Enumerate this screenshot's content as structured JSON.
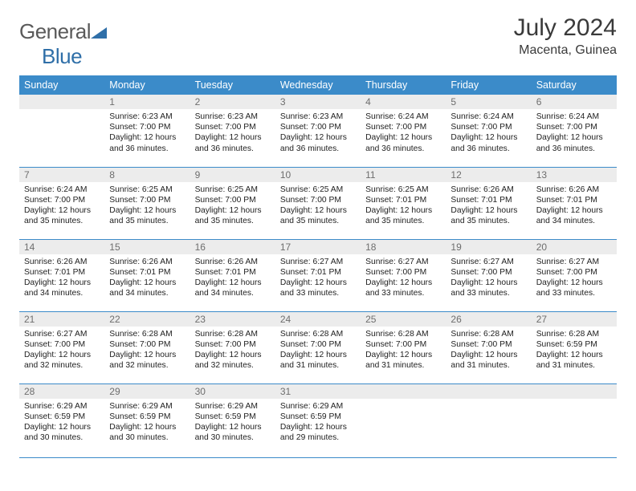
{
  "brand": {
    "name_a": "General",
    "name_b": "Blue"
  },
  "title": "July 2024",
  "subtitle": "Macenta, Guinea",
  "colors": {
    "header_bg": "#3b8bc9",
    "header_fg": "#ffffff",
    "daynum_bg": "#ececec",
    "daynum_fg": "#6e6e6e",
    "rule": "#3b8bc9",
    "text": "#222222",
    "brand_gray": "#5a5a5a",
    "brand_blue": "#2f6fa8"
  },
  "headers": [
    "Sunday",
    "Monday",
    "Tuesday",
    "Wednesday",
    "Thursday",
    "Friday",
    "Saturday"
  ],
  "weeks": [
    [
      {
        "n": "",
        "lines": []
      },
      {
        "n": "1",
        "lines": [
          "Sunrise: 6:23 AM",
          "Sunset: 7:00 PM",
          "Daylight: 12 hours",
          "and 36 minutes."
        ]
      },
      {
        "n": "2",
        "lines": [
          "Sunrise: 6:23 AM",
          "Sunset: 7:00 PM",
          "Daylight: 12 hours",
          "and 36 minutes."
        ]
      },
      {
        "n": "3",
        "lines": [
          "Sunrise: 6:23 AM",
          "Sunset: 7:00 PM",
          "Daylight: 12 hours",
          "and 36 minutes."
        ]
      },
      {
        "n": "4",
        "lines": [
          "Sunrise: 6:24 AM",
          "Sunset: 7:00 PM",
          "Daylight: 12 hours",
          "and 36 minutes."
        ]
      },
      {
        "n": "5",
        "lines": [
          "Sunrise: 6:24 AM",
          "Sunset: 7:00 PM",
          "Daylight: 12 hours",
          "and 36 minutes."
        ]
      },
      {
        "n": "6",
        "lines": [
          "Sunrise: 6:24 AM",
          "Sunset: 7:00 PM",
          "Daylight: 12 hours",
          "and 36 minutes."
        ]
      }
    ],
    [
      {
        "n": "7",
        "lines": [
          "Sunrise: 6:24 AM",
          "Sunset: 7:00 PM",
          "Daylight: 12 hours",
          "and 35 minutes."
        ]
      },
      {
        "n": "8",
        "lines": [
          "Sunrise: 6:25 AM",
          "Sunset: 7:00 PM",
          "Daylight: 12 hours",
          "and 35 minutes."
        ]
      },
      {
        "n": "9",
        "lines": [
          "Sunrise: 6:25 AM",
          "Sunset: 7:00 PM",
          "Daylight: 12 hours",
          "and 35 minutes."
        ]
      },
      {
        "n": "10",
        "lines": [
          "Sunrise: 6:25 AM",
          "Sunset: 7:00 PM",
          "Daylight: 12 hours",
          "and 35 minutes."
        ]
      },
      {
        "n": "11",
        "lines": [
          "Sunrise: 6:25 AM",
          "Sunset: 7:01 PM",
          "Daylight: 12 hours",
          "and 35 minutes."
        ]
      },
      {
        "n": "12",
        "lines": [
          "Sunrise: 6:26 AM",
          "Sunset: 7:01 PM",
          "Daylight: 12 hours",
          "and 35 minutes."
        ]
      },
      {
        "n": "13",
        "lines": [
          "Sunrise: 6:26 AM",
          "Sunset: 7:01 PM",
          "Daylight: 12 hours",
          "and 34 minutes."
        ]
      }
    ],
    [
      {
        "n": "14",
        "lines": [
          "Sunrise: 6:26 AM",
          "Sunset: 7:01 PM",
          "Daylight: 12 hours",
          "and 34 minutes."
        ]
      },
      {
        "n": "15",
        "lines": [
          "Sunrise: 6:26 AM",
          "Sunset: 7:01 PM",
          "Daylight: 12 hours",
          "and 34 minutes."
        ]
      },
      {
        "n": "16",
        "lines": [
          "Sunrise: 6:26 AM",
          "Sunset: 7:01 PM",
          "Daylight: 12 hours",
          "and 34 minutes."
        ]
      },
      {
        "n": "17",
        "lines": [
          "Sunrise: 6:27 AM",
          "Sunset: 7:01 PM",
          "Daylight: 12 hours",
          "and 33 minutes."
        ]
      },
      {
        "n": "18",
        "lines": [
          "Sunrise: 6:27 AM",
          "Sunset: 7:00 PM",
          "Daylight: 12 hours",
          "and 33 minutes."
        ]
      },
      {
        "n": "19",
        "lines": [
          "Sunrise: 6:27 AM",
          "Sunset: 7:00 PM",
          "Daylight: 12 hours",
          "and 33 minutes."
        ]
      },
      {
        "n": "20",
        "lines": [
          "Sunrise: 6:27 AM",
          "Sunset: 7:00 PM",
          "Daylight: 12 hours",
          "and 33 minutes."
        ]
      }
    ],
    [
      {
        "n": "21",
        "lines": [
          "Sunrise: 6:27 AM",
          "Sunset: 7:00 PM",
          "Daylight: 12 hours",
          "and 32 minutes."
        ]
      },
      {
        "n": "22",
        "lines": [
          "Sunrise: 6:28 AM",
          "Sunset: 7:00 PM",
          "Daylight: 12 hours",
          "and 32 minutes."
        ]
      },
      {
        "n": "23",
        "lines": [
          "Sunrise: 6:28 AM",
          "Sunset: 7:00 PM",
          "Daylight: 12 hours",
          "and 32 minutes."
        ]
      },
      {
        "n": "24",
        "lines": [
          "Sunrise: 6:28 AM",
          "Sunset: 7:00 PM",
          "Daylight: 12 hours",
          "and 31 minutes."
        ]
      },
      {
        "n": "25",
        "lines": [
          "Sunrise: 6:28 AM",
          "Sunset: 7:00 PM",
          "Daylight: 12 hours",
          "and 31 minutes."
        ]
      },
      {
        "n": "26",
        "lines": [
          "Sunrise: 6:28 AM",
          "Sunset: 7:00 PM",
          "Daylight: 12 hours",
          "and 31 minutes."
        ]
      },
      {
        "n": "27",
        "lines": [
          "Sunrise: 6:28 AM",
          "Sunset: 6:59 PM",
          "Daylight: 12 hours",
          "and 31 minutes."
        ]
      }
    ],
    [
      {
        "n": "28",
        "lines": [
          "Sunrise: 6:29 AM",
          "Sunset: 6:59 PM",
          "Daylight: 12 hours",
          "and 30 minutes."
        ]
      },
      {
        "n": "29",
        "lines": [
          "Sunrise: 6:29 AM",
          "Sunset: 6:59 PM",
          "Daylight: 12 hours",
          "and 30 minutes."
        ]
      },
      {
        "n": "30",
        "lines": [
          "Sunrise: 6:29 AM",
          "Sunset: 6:59 PM",
          "Daylight: 12 hours",
          "and 30 minutes."
        ]
      },
      {
        "n": "31",
        "lines": [
          "Sunrise: 6:29 AM",
          "Sunset: 6:59 PM",
          "Daylight: 12 hours",
          "and 29 minutes."
        ]
      },
      {
        "n": "",
        "lines": []
      },
      {
        "n": "",
        "lines": []
      },
      {
        "n": "",
        "lines": []
      }
    ]
  ]
}
